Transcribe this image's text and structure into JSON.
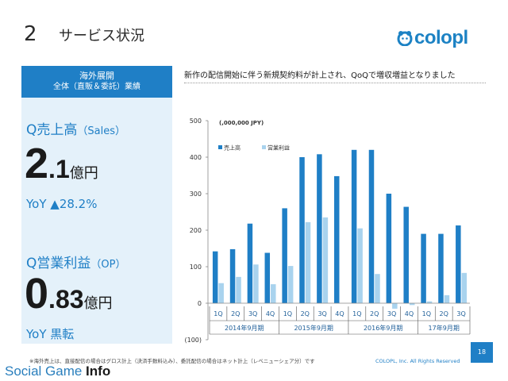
{
  "slide": {
    "number": "2",
    "heading": "サービス状況",
    "logo_text": "colopl",
    "page_number": "18",
    "footnote": "※海外売上は、直接配信の場合はグロス計上（決済手数料込み）、委託配信の場合はネット計上（レベニューシェア分）です",
    "copyright": "COLOPL, Inc. All Rights Reserved",
    "watermark_part1": "Social Game ",
    "watermark_part2": "Info"
  },
  "left_panel": {
    "header_line1": "海外展開",
    "header_line2": "全体（直販＆委託）業績",
    "sales": {
      "label": "Q売上高",
      "label_sub": "（Sales）",
      "value_int": "2",
      "value_dec": ".1",
      "unit": "億円",
      "yoy": "YoY ▲28.2%"
    },
    "op": {
      "label": "Q営業利益",
      "label_sub": "（OP）",
      "value_int": "0",
      "value_dec": ".83",
      "unit": "億円",
      "yoy": "YoY 黒転"
    }
  },
  "headline": "新作の配信開始に伴う新規契約料が計上され、QoQで増収増益となりました",
  "chart_data": {
    "type": "bar",
    "unit_label": "(,000,000 JPY)",
    "ylim": [
      -100,
      500
    ],
    "y_ticks": [
      "(100)",
      "0",
      "100",
      "200",
      "300",
      "400",
      "500"
    ],
    "y_tick_values": [
      -100,
      0,
      100,
      200,
      300,
      400,
      500
    ],
    "categories": [
      "1Q",
      "2Q",
      "3Q",
      "4Q",
      "1Q",
      "2Q",
      "3Q",
      "4Q",
      "1Q",
      "2Q",
      "3Q",
      "4Q",
      "1Q",
      "2Q",
      "3Q"
    ],
    "groups": [
      {
        "label": "2014年9月期",
        "count": 4
      },
      {
        "label": "2015年9月期",
        "count": 4
      },
      {
        "label": "2016年9月期",
        "count": 4
      },
      {
        "label": "17年9月期",
        "count": 3
      }
    ],
    "series": [
      {
        "name": "売上高",
        "color": "#1f7fc6",
        "values": [
          142,
          148,
          218,
          138,
          260,
          400,
          408,
          348,
          420,
          420,
          300,
          264,
          190,
          190,
          213
        ]
      },
      {
        "name": "営業利益",
        "color": "#a9d3ee",
        "values": [
          55,
          72,
          106,
          52,
          102,
          222,
          235,
          0,
          205,
          80,
          -15,
          -5,
          5,
          22,
          83
        ]
      }
    ],
    "legend_position": "top-left",
    "grid": false
  }
}
